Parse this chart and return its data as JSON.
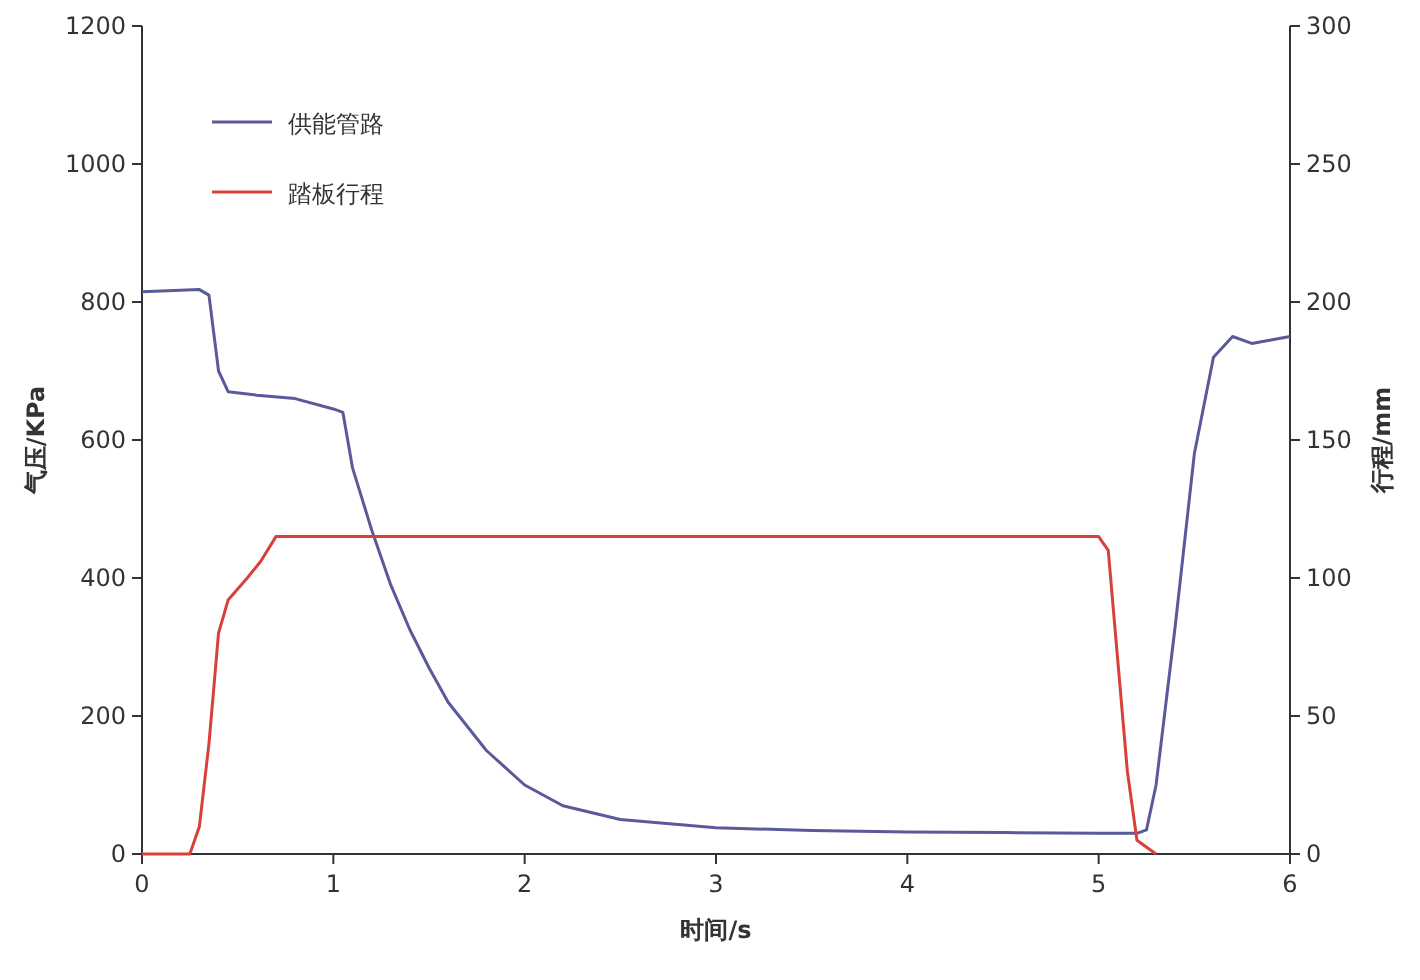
{
  "chart_data": {
    "type": "line",
    "xlabel": "时间/s",
    "ylabel": "气压/KPa",
    "y2label": "行程/mm",
    "xlim": [
      0,
      6
    ],
    "xticks": [
      0,
      1,
      2,
      3,
      4,
      5,
      6
    ],
    "ylim": [
      0,
      1200
    ],
    "yticks": [
      0,
      200,
      400,
      600,
      800,
      1000,
      1200
    ],
    "y2lim": [
      0,
      300
    ],
    "y2ticks": [
      0,
      50,
      100,
      150,
      200,
      250,
      300
    ],
    "legend": "top left",
    "grid": false,
    "series": [
      {
        "name": "供能管路",
        "color": "#5a5a9a",
        "x": [
          0,
          0.3,
          0.35,
          0.4,
          0.45,
          0.6,
          0.8,
          1.0,
          1.05,
          1.1,
          1.2,
          1.3,
          1.4,
          1.5,
          1.6,
          1.8,
          2.0,
          2.2,
          2.5,
          3,
          3.5,
          4,
          4.5,
          5,
          5.2,
          5.25,
          5.3,
          5.4,
          5.5,
          5.6,
          5.7,
          5.8,
          5.9,
          6
        ],
        "values": [
          815,
          818,
          810,
          700,
          670,
          665,
          660,
          645,
          640,
          560,
          470,
          390,
          325,
          270,
          220,
          150,
          100,
          70,
          50,
          38,
          34,
          32,
          31,
          30,
          30,
          35,
          100,
          330,
          580,
          720,
          750,
          740,
          745,
          750
        ]
      },
      {
        "name": "踏板行程",
        "color": "#d9403a",
        "axis": "y2",
        "x": [
          0,
          0.25,
          0.3,
          0.35,
          0.4,
          0.45,
          0.55,
          0.62,
          0.7,
          0.8,
          5.0,
          5.05,
          5.1,
          5.15,
          5.2,
          5.3
        ],
        "values": [
          0,
          0,
          10,
          40,
          80,
          92,
          100,
          106,
          115,
          115,
          115,
          110,
          70,
          30,
          5,
          0
        ]
      }
    ]
  }
}
